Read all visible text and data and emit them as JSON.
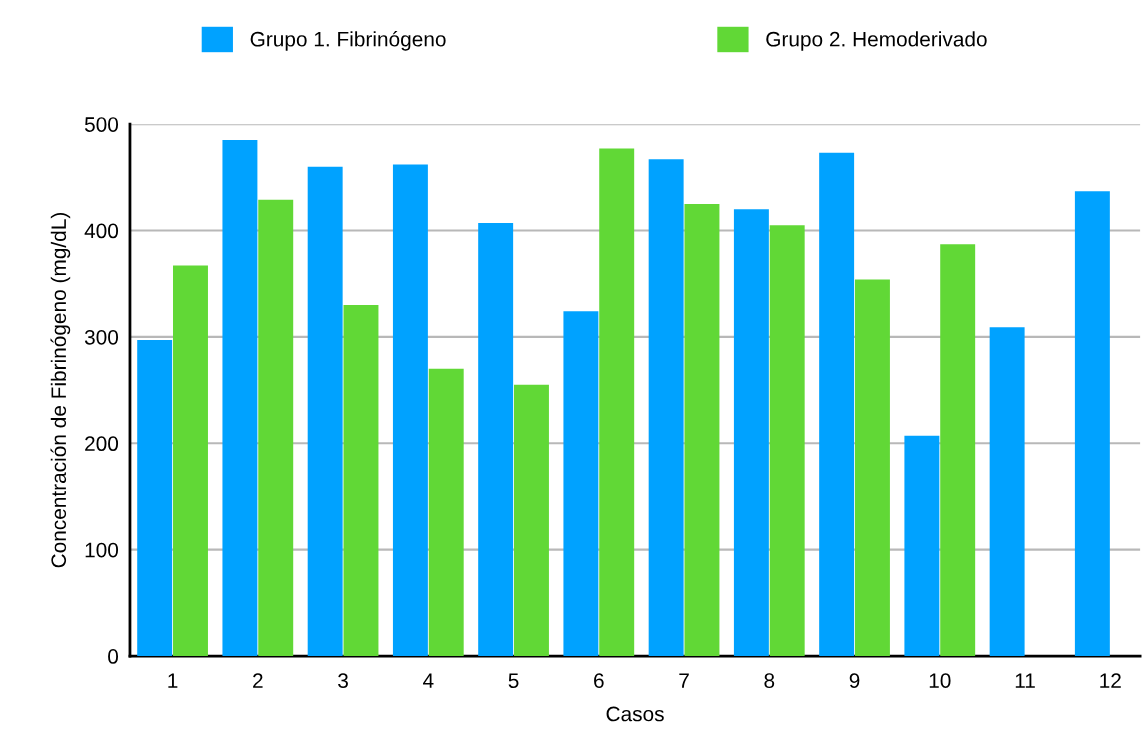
{
  "chart_data": {
    "type": "bar",
    "xlabel": "Casos",
    "ylabel": "Concentración de Fibrinógeno (mg/dL)",
    "categories": [
      "1",
      "2",
      "3",
      "4",
      "5",
      "6",
      "7",
      "8",
      "9",
      "10",
      "11",
      "12"
    ],
    "series": [
      {
        "name": "Grupo 1. Fibrinógeno",
        "color": "#00a2ff",
        "values": [
          297,
          485,
          460,
          462,
          407,
          324,
          467,
          420,
          473,
          207,
          309,
          437
        ]
      },
      {
        "name": "Grupo 2. Hemoderivado",
        "color": "#61d836",
        "values": [
          367,
          429,
          330,
          270,
          255,
          477,
          425,
          405,
          354,
          387,
          null,
          null
        ]
      }
    ],
    "ylim": [
      0,
      500
    ],
    "yticks": [
      0,
      100,
      200,
      300,
      400,
      500
    ],
    "grid": "y",
    "legend": "top"
  }
}
